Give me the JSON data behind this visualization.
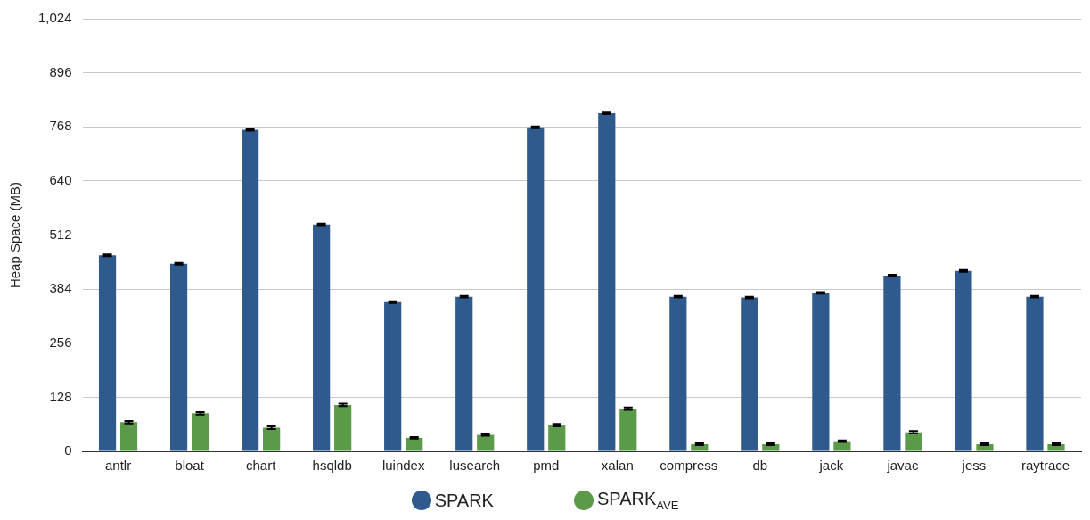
{
  "chart_data": {
    "type": "bar",
    "ylabel": "Heap Space (MB)",
    "categories": [
      "antlr",
      "bloat",
      "chart",
      "hsqldb",
      "luindex",
      "lusearch",
      "pmd",
      "xalan",
      "compress",
      "db",
      "jack",
      "javac",
      "jess",
      "raytrace"
    ],
    "series": [
      {
        "name": "SPARK",
        "color": "#2e5a8e",
        "values": [
          464,
          444,
          761,
          537,
          353,
          366,
          767,
          800,
          366,
          364,
          375,
          416,
          427,
          366
        ],
        "errors": [
          2,
          2,
          2,
          2,
          2,
          2,
          2,
          2,
          2,
          2,
          2,
          2,
          2,
          2
        ]
      },
      {
        "name": "SPARK$_{AVE}$",
        "color": "#5b9a49",
        "values": [
          69,
          90,
          56,
          110,
          32,
          39,
          62,
          101,
          17,
          17,
          24,
          45,
          17,
          17
        ],
        "errors": [
          3,
          3,
          3,
          3,
          2,
          2,
          3,
          3,
          2,
          2,
          2,
          3,
          2,
          2
        ]
      }
    ],
    "ylim": [
      0,
      1024
    ],
    "yticks": [
      0,
      128,
      256,
      384,
      512,
      640,
      768,
      896,
      {
        "value": 1024,
        "label": "1,024"
      }
    ],
    "grid": "y",
    "legend": "bottom"
  }
}
